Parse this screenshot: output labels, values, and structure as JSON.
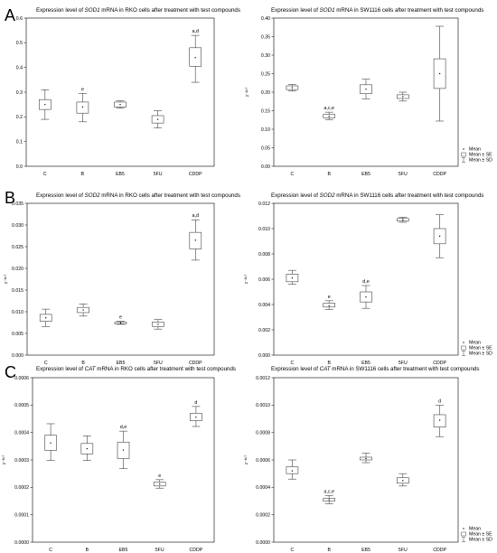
{
  "figure": {
    "panels": [
      {
        "letter": "A"
      },
      {
        "letter": "B"
      },
      {
        "letter": "C"
      }
    ]
  },
  "legend": {
    "mean": "Mean",
    "se": "Mean ± SE",
    "sd": "Mean ± SD"
  },
  "chart_data": [
    {
      "id": "A-left",
      "type": "box",
      "title_parts": [
        {
          "t": "Expression level of "
        },
        {
          "t": "SOD1",
          "i": true
        },
        {
          "t": " mRNA in RKO cells after treatment with test compounds"
        }
      ],
      "ylabel": "",
      "ylim": [
        0,
        0.6
      ],
      "yticks": [
        "0.0",
        "0.1",
        "0.2",
        "0.3",
        "0.4",
        "0.5",
        "0.6"
      ],
      "categories": [
        "C",
        "B",
        "EB5",
        "5FU",
        "CDDP"
      ],
      "mean": [
        0.25,
        0.24,
        0.25,
        0.19,
        0.44
      ],
      "se_low": [
        0.23,
        0.215,
        0.24,
        0.175,
        0.405
      ],
      "se_high": [
        0.27,
        0.26,
        0.26,
        0.205,
        0.48
      ],
      "sd_low": [
        0.19,
        0.18,
        0.235,
        0.155,
        0.34
      ],
      "sd_high": [
        0.31,
        0.295,
        0.265,
        0.225,
        0.53
      ],
      "annotations": [
        "",
        "e",
        "",
        "",
        "a,d"
      ]
    },
    {
      "id": "A-right",
      "type": "box",
      "title_parts": [
        {
          "t": "Expression level of "
        },
        {
          "t": "SOD1",
          "i": true
        },
        {
          "t": " mRNA in SW1116 cells after treatment with test compounds"
        }
      ],
      "ylabel": "2⁻ᴬᶜᵀ",
      "ylim": [
        0,
        0.4
      ],
      "yticks": [
        "0.00",
        "0.05",
        "0.10",
        "0.15",
        "0.20",
        "0.25",
        "0.30",
        "0.35",
        "0.40"
      ],
      "categories": [
        "C",
        "B",
        "EB5",
        "5FU",
        "CDDP"
      ],
      "mean": [
        0.212,
        0.135,
        0.208,
        0.188,
        0.25
      ],
      "se_low": [
        0.207,
        0.131,
        0.196,
        0.183,
        0.21
      ],
      "se_high": [
        0.217,
        0.14,
        0.22,
        0.193,
        0.29
      ],
      "sd_low": [
        0.203,
        0.126,
        0.182,
        0.176,
        0.122
      ],
      "sd_high": [
        0.221,
        0.146,
        0.235,
        0.2,
        0.378
      ],
      "annotations": [
        "",
        "a,c,e",
        "",
        "",
        ""
      ]
    },
    {
      "id": "B-left",
      "type": "box",
      "title_parts": [
        {
          "t": "Expression level of "
        },
        {
          "t": "SOD2",
          "i": true
        },
        {
          "t": " mRNA in RKO cells after treatment with test compounds"
        }
      ],
      "ylabel": "2⁻ᴬᶜᵀ",
      "ylim": [
        0,
        0.035
      ],
      "yticks": [
        "0.000",
        "0.005",
        "0.010",
        "0.015",
        "0.020",
        "0.025",
        "0.030",
        "0.035"
      ],
      "categories": [
        "C",
        "B",
        "EB5",
        "5FU",
        "CDDP"
      ],
      "mean": [
        0.0086,
        0.0104,
        0.0074,
        0.0071,
        0.0265
      ],
      "se_low": [
        0.0078,
        0.0098,
        0.0072,
        0.0066,
        0.0245
      ],
      "se_high": [
        0.0094,
        0.011,
        0.0076,
        0.0076,
        0.0283
      ],
      "sd_low": [
        0.0066,
        0.009,
        0.0071,
        0.006,
        0.0219
      ],
      "sd_high": [
        0.0106,
        0.0118,
        0.0078,
        0.0082,
        0.0312
      ],
      "annotations": [
        "",
        "",
        "e",
        "",
        "a,d"
      ]
    },
    {
      "id": "B-right",
      "type": "box",
      "title_parts": [
        {
          "t": "Expression level of "
        },
        {
          "t": "SOD2",
          "i": true
        },
        {
          "t": " mRNA in SW1116 cells after treatment with test compounds"
        }
      ],
      "ylabel": "2⁻ᴬᶜᵀ",
      "ylim": [
        0,
        0.012
      ],
      "yticks": [
        "0.000",
        "0.002",
        "0.004",
        "0.006",
        "0.008",
        "0.010",
        "0.012"
      ],
      "categories": [
        "C",
        "B",
        "EB5",
        "5FU",
        "CDDP"
      ],
      "mean": [
        0.0061,
        0.0039,
        0.0046,
        0.0107,
        0.0094
      ],
      "se_low": [
        0.0058,
        0.0038,
        0.0042,
        0.0106,
        0.0088
      ],
      "se_high": [
        0.0064,
        0.0041,
        0.005,
        0.0108,
        0.01
      ],
      "sd_low": [
        0.0056,
        0.0036,
        0.0037,
        0.0105,
        0.0077
      ],
      "sd_high": [
        0.0067,
        0.0043,
        0.0055,
        0.0109,
        0.0111
      ],
      "annotations": [
        "",
        "e",
        "d,e",
        "",
        ""
      ]
    },
    {
      "id": "C-left",
      "type": "box",
      "title_parts": [
        {
          "t": "Expression level of "
        },
        {
          "t": "CAT",
          "i": true
        },
        {
          "t": " mRNA in RKO cells after treatment with test compounds"
        }
      ],
      "ylabel": "2⁻ᴬᶜᵀ",
      "ylim": [
        0,
        0.0006
      ],
      "yticks": [
        "0.0000",
        "0.0001",
        "0.0002",
        "0.0003",
        "0.0004",
        "0.0005",
        "0.0006"
      ],
      "categories": [
        "C",
        "B",
        "EB5",
        "5FU",
        "CDDP"
      ],
      "mean": [
        0.000362,
        0.000341,
        0.000336,
        0.000212,
        0.000456
      ],
      "se_low": [
        0.000335,
        0.000322,
        0.000305,
        0.000205,
        0.000443
      ],
      "se_high": [
        0.00039,
        0.00036,
        0.000365,
        0.000219,
        0.00047
      ],
      "sd_low": [
        0.000298,
        0.000298,
        0.000268,
        0.000197,
        0.000422
      ],
      "sd_high": [
        0.000432,
        0.000388,
        0.000405,
        0.000228,
        0.000495
      ],
      "annotations": [
        "",
        "",
        "d,e",
        "e",
        "d"
      ]
    },
    {
      "id": "C-right",
      "type": "box",
      "title_parts": [
        {
          "t": "Expression level of "
        },
        {
          "t": "CAT",
          "i": true
        },
        {
          "t": " mRNA in SW1116 cells after treatment with test compounds"
        }
      ],
      "ylabel": "2⁻ᴬᶜᵀ",
      "ylim": [
        0,
        0.0012
      ],
      "yticks": [
        "0.0000",
        "0.0002",
        "0.0004",
        "0.0006",
        "0.0008",
        "0.0010",
        "0.0012"
      ],
      "categories": [
        "C",
        "B",
        "EB5",
        "5FU",
        "CDDP"
      ],
      "mean": [
        0.00052,
        0.00031,
        0.00061,
        0.00045,
        0.00089
      ],
      "se_low": [
        0.0005,
        0.0003,
        0.0006,
        0.00043,
        0.00084
      ],
      "se_high": [
        0.00055,
        0.00032,
        0.00062,
        0.00047,
        0.00093
      ],
      "sd_low": [
        0.00046,
        0.00028,
        0.00058,
        0.00041,
        0.00077
      ],
      "sd_high": [
        0.0006,
        0.00034,
        0.00065,
        0.0005,
        0.001
      ],
      "annotations": [
        "",
        "a,c,e",
        "",
        "",
        "d"
      ]
    }
  ]
}
